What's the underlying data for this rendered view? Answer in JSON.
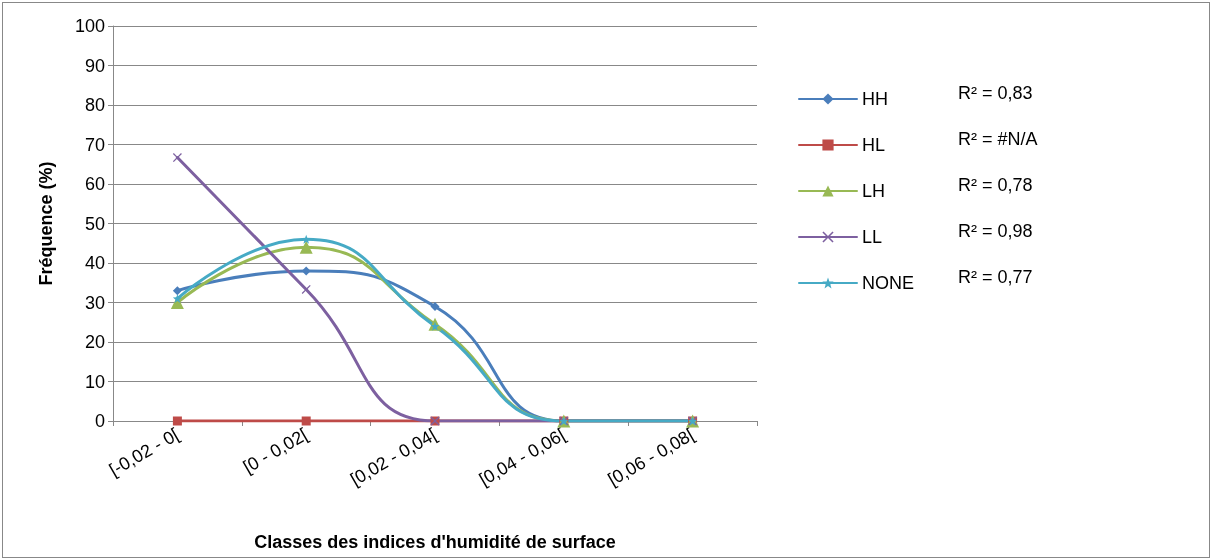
{
  "chart_data": {
    "type": "line",
    "xlabel": "Classes des indices d'humidité de surface",
    "ylabel": "Fréquence (%)",
    "categories": [
      "[-0,02 - 0[",
      "[0 - 0,02[",
      "[0,02 - 0,04[",
      "[0,04 - 0,06[",
      "[0,06 - 0,08["
    ],
    "ylim": [
      0,
      100
    ],
    "yticks": [
      0,
      10,
      20,
      30,
      40,
      50,
      60,
      70,
      80,
      90,
      100
    ],
    "grid": "y",
    "legend": "right",
    "line_style": "solid",
    "series": [
      {
        "name": "HH",
        "color": "#4a7ebb",
        "marker": "diamond",
        "values": [
          33,
          38,
          29,
          0,
          0
        ]
      },
      {
        "name": "HL",
        "color": "#be4b48",
        "marker": "square",
        "values": [
          0,
          0,
          0,
          0,
          0
        ]
      },
      {
        "name": "LH",
        "color": "#98b954",
        "marker": "triangle",
        "values": [
          30,
          44,
          24.5,
          0,
          0
        ]
      },
      {
        "name": "LL",
        "color": "#7d60a0",
        "marker": "cross",
        "values": [
          66.7,
          33.3,
          0,
          0,
          0
        ]
      },
      {
        "name": "NONE",
        "color": "#46aac5",
        "marker": "star",
        "values": [
          31,
          46,
          24,
          0,
          0
        ]
      }
    ],
    "annotations": [
      "R² = 0,83",
      "R² = #N/A",
      "R² = 0,78",
      "R² = 0,98",
      "R² = 0,77"
    ]
  }
}
